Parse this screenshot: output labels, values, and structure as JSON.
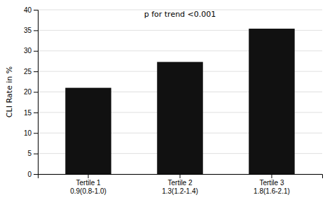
{
  "chart_data": {
    "type": "bar",
    "categories": [
      "Tertile 1\n0.9(0.8-1.0)",
      "Tertile 2\n1.3(1.2-1.4)",
      "Tertile 3\n1.8(1.6-2.1)"
    ],
    "values": [
      21.0,
      27.3,
      35.4
    ],
    "color": "#111111",
    "ylabel": "CLI Rate in %",
    "annotation": "p for trend <0.001",
    "ylim": [
      0,
      40
    ],
    "yticks": [
      0,
      5,
      10,
      15,
      20,
      25,
      30,
      35,
      40
    ],
    "grid": true
  }
}
